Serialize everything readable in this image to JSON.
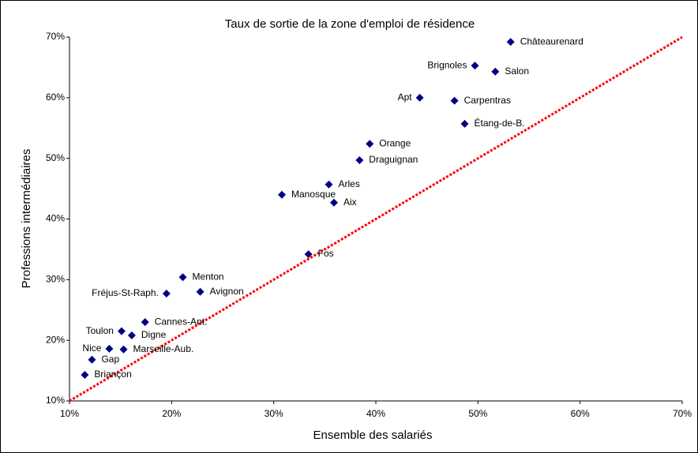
{
  "chart_data": {
    "type": "scatter",
    "title": "Taux de sortie de la zone d'emploi de résidence",
    "x_label": "Ensemble des salariés",
    "y_label": "Professions intermédiaires",
    "series": [
      {
        "color": "#000080",
        "labels": [
          "Châteaurenard",
          "Brignoles",
          "Salon",
          "Apt",
          "Carpentras",
          "Étang-de-B.",
          "Orange",
          "Draguignan",
          "Arles",
          "Manosque",
          "Aix",
          "Fos",
          "Menton",
          "Fréjus-St-Raph.",
          "Avignon",
          "Cannes-Ant.",
          "Toulon",
          "Digne",
          "Nice",
          "Marseille-Aub.",
          "Gap",
          "Briançon"
        ],
        "x": [
          53.2,
          49.7,
          51.7,
          44.3,
          47.7,
          48.7,
          39.4,
          38.4,
          35.4,
          30.8,
          35.9,
          33.4,
          21.1,
          19.5,
          22.8,
          17.4,
          15.1,
          16.1,
          13.9,
          15.3,
          12.2,
          11.5
        ],
        "y": [
          69.2,
          65.3,
          64.3,
          60.0,
          59.5,
          55.7,
          52.4,
          49.7,
          45.7,
          44.0,
          42.7,
          34.2,
          30.4,
          27.7,
          28.0,
          23.0,
          21.5,
          20.8,
          18.6,
          18.5,
          16.8,
          14.3
        ]
      }
    ],
    "reference_line": {
      "color": "#ff0000",
      "x": [
        10,
        70
      ],
      "y": [
        10,
        70
      ]
    },
    "xlim": [
      10,
      70
    ],
    "xticks": [
      {
        "value": 10,
        "label": "10%"
      },
      {
        "value": 20,
        "label": "20%"
      },
      {
        "value": 30,
        "label": "30%"
      },
      {
        "value": 40,
        "label": "40%"
      },
      {
        "value": 50,
        "label": "50%"
      },
      {
        "value": 60,
        "label": "60%"
      },
      {
        "value": 70,
        "label": "70%"
      }
    ],
    "ylim": [
      10,
      70
    ],
    "yticks": [
      {
        "value": 10,
        "label": "10%"
      },
      {
        "value": 20,
        "label": "20%"
      },
      {
        "value": 30,
        "label": "30%"
      },
      {
        "value": 40,
        "label": "40%"
      },
      {
        "value": 50,
        "label": "50%"
      },
      {
        "value": 60,
        "label": "60%"
      },
      {
        "value": 70,
        "label": "70%"
      }
    ]
  }
}
